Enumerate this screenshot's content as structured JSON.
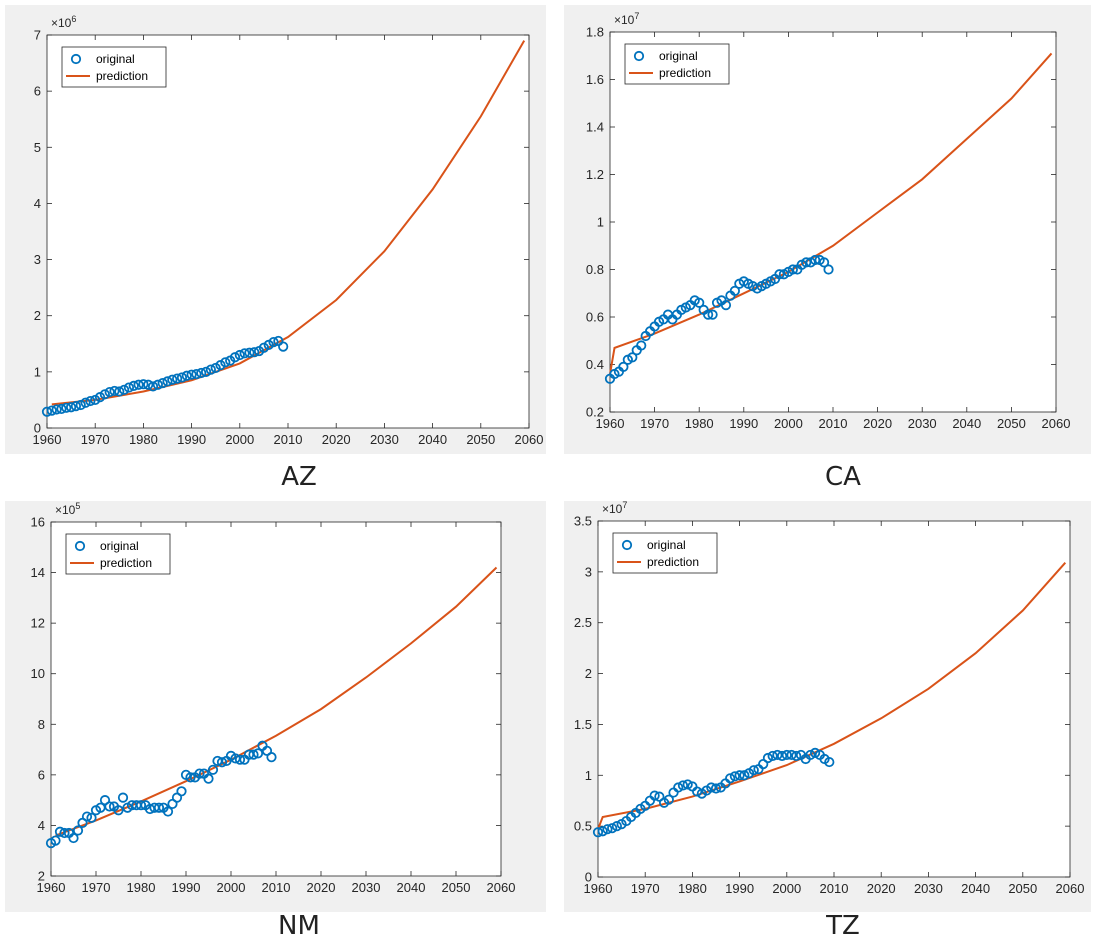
{
  "colors": {
    "original": "#0072bd",
    "prediction": "#d95319"
  },
  "legend": {
    "original": "original",
    "prediction": "prediction"
  },
  "chart_data": [
    {
      "type": "scatter",
      "caption": "AZ",
      "exponent_base": "×10",
      "exponent": "6",
      "xlim": [
        1960,
        2060
      ],
      "ylim": [
        0,
        7
      ],
      "xticks": [
        1960,
        1970,
        1980,
        1990,
        2000,
        2010,
        2020,
        2030,
        2040,
        2050,
        2060
      ],
      "yticks": [
        0,
        1,
        2,
        3,
        4,
        5,
        6,
        7
      ],
      "legend_position": "top-left",
      "series": [
        {
          "name": "original",
          "x": [
            1960,
            1961,
            1962,
            1963,
            1964,
            1965,
            1966,
            1967,
            1968,
            1969,
            1970,
            1971,
            1972,
            1973,
            1974,
            1975,
            1976,
            1977,
            1978,
            1979,
            1980,
            1981,
            1982,
            1983,
            1984,
            1985,
            1986,
            1987,
            1988,
            1989,
            1990,
            1991,
            1992,
            1993,
            1994,
            1995,
            1996,
            1997,
            1998,
            1999,
            2000,
            2001,
            2002,
            2003,
            2004,
            2005,
            2006,
            2007,
            2008,
            2009
          ],
          "y": [
            0.29,
            0.31,
            0.33,
            0.34,
            0.36,
            0.37,
            0.39,
            0.41,
            0.45,
            0.48,
            0.5,
            0.55,
            0.6,
            0.64,
            0.66,
            0.65,
            0.68,
            0.72,
            0.75,
            0.77,
            0.78,
            0.77,
            0.74,
            0.77,
            0.8,
            0.83,
            0.86,
            0.88,
            0.9,
            0.93,
            0.95,
            0.96,
            0.98,
            1.0,
            1.04,
            1.07,
            1.12,
            1.17,
            1.2,
            1.26,
            1.3,
            1.33,
            1.34,
            1.35,
            1.37,
            1.43,
            1.48,
            1.53,
            1.55,
            1.45
          ]
        },
        {
          "name": "prediction",
          "x": [
            1961,
            1970,
            1980,
            1990,
            2000,
            2010,
            2020,
            2030,
            2040,
            2050,
            2059
          ],
          "y": [
            0.42,
            0.5,
            0.65,
            0.85,
            1.15,
            1.62,
            2.28,
            3.15,
            4.25,
            5.55,
            6.9
          ]
        }
      ]
    },
    {
      "type": "scatter",
      "caption": "CA",
      "exponent_base": "×10",
      "exponent": "7",
      "xlim": [
        1960,
        2060
      ],
      "ylim": [
        0.2,
        1.8
      ],
      "xticks": [
        1960,
        1970,
        1980,
        1990,
        2000,
        2010,
        2020,
        2030,
        2040,
        2050,
        2060
      ],
      "yticks": [
        0.2,
        0.4,
        0.6,
        0.8,
        1,
        1.2,
        1.4,
        1.6,
        1.8
      ],
      "legend_position": "top-left",
      "series": [
        {
          "name": "original",
          "x": [
            1960,
            1961,
            1962,
            1963,
            1964,
            1965,
            1966,
            1967,
            1968,
            1969,
            1970,
            1971,
            1972,
            1973,
            1974,
            1975,
            1976,
            1977,
            1978,
            1979,
            1980,
            1981,
            1982,
            1983,
            1984,
            1985,
            1986,
            1987,
            1988,
            1989,
            1990,
            1991,
            1992,
            1993,
            1994,
            1995,
            1996,
            1997,
            1998,
            1999,
            2000,
            2001,
            2002,
            2003,
            2004,
            2005,
            2006,
            2007,
            2008,
            2009
          ],
          "y": [
            0.34,
            0.36,
            0.37,
            0.39,
            0.42,
            0.43,
            0.46,
            0.48,
            0.52,
            0.54,
            0.56,
            0.58,
            0.59,
            0.61,
            0.59,
            0.61,
            0.63,
            0.64,
            0.65,
            0.67,
            0.66,
            0.63,
            0.61,
            0.61,
            0.66,
            0.67,
            0.65,
            0.69,
            0.71,
            0.74,
            0.75,
            0.74,
            0.73,
            0.72,
            0.73,
            0.74,
            0.75,
            0.76,
            0.78,
            0.78,
            0.79,
            0.8,
            0.8,
            0.82,
            0.83,
            0.83,
            0.84,
            0.84,
            0.83,
            0.8
          ]
        },
        {
          "name": "prediction",
          "x": [
            1960,
            1961,
            1970,
            1980,
            1990,
            2000,
            2010,
            2020,
            2030,
            2040,
            2050,
            2059
          ],
          "y": [
            0.36,
            0.47,
            0.53,
            0.61,
            0.7,
            0.79,
            0.9,
            1.04,
            1.18,
            1.35,
            1.52,
            1.71
          ]
        }
      ]
    },
    {
      "type": "scatter",
      "caption": "NM",
      "exponent_base": "×10",
      "exponent": "5",
      "xlim": [
        1960,
        2060
      ],
      "ylim": [
        2,
        16
      ],
      "xticks": [
        1960,
        1970,
        1980,
        1990,
        2000,
        2010,
        2020,
        2030,
        2040,
        2050,
        2060
      ],
      "yticks": [
        2,
        4,
        6,
        8,
        10,
        12,
        14,
        16
      ],
      "legend_position": "top-left",
      "series": [
        {
          "name": "original",
          "x": [
            1960,
            1961,
            1962,
            1963,
            1964,
            1965,
            1966,
            1967,
            1968,
            1969,
            1970,
            1971,
            1972,
            1973,
            1974,
            1975,
            1976,
            1977,
            1978,
            1979,
            1980,
            1981,
            1982,
            1983,
            1984,
            1985,
            1986,
            1987,
            1988,
            1989,
            1990,
            1991,
            1992,
            1993,
            1994,
            1995,
            1996,
            1997,
            1998,
            1999,
            2000,
            2001,
            2002,
            2003,
            2004,
            2005,
            2006,
            2007,
            2008,
            2009
          ],
          "y": [
            3.3,
            3.4,
            3.75,
            3.7,
            3.7,
            3.5,
            3.8,
            4.1,
            4.35,
            4.3,
            4.6,
            4.7,
            5.0,
            4.75,
            4.75,
            4.6,
            5.1,
            4.7,
            4.8,
            4.8,
            4.8,
            4.8,
            4.65,
            4.7,
            4.7,
            4.7,
            4.55,
            4.85,
            5.1,
            5.35,
            6.0,
            5.9,
            5.9,
            6.05,
            6.05,
            5.85,
            6.2,
            6.55,
            6.5,
            6.55,
            6.75,
            6.65,
            6.6,
            6.6,
            6.8,
            6.8,
            6.85,
            7.15,
            6.95,
            6.7
          ]
        },
        {
          "name": "prediction",
          "x": [
            1961,
            1970,
            1980,
            1990,
            2000,
            2010,
            2020,
            2030,
            2040,
            2050,
            2059
          ],
          "y": [
            3.6,
            4.2,
            4.95,
            5.75,
            6.6,
            7.55,
            8.6,
            9.85,
            11.2,
            12.65,
            14.2
          ]
        }
      ]
    },
    {
      "type": "scatter",
      "caption": "TZ",
      "exponent_base": "×10",
      "exponent": "7",
      "xlim": [
        1960,
        2060
      ],
      "ylim": [
        0,
        3.5
      ],
      "xticks": [
        1960,
        1970,
        1980,
        1990,
        2000,
        2010,
        2020,
        2030,
        2040,
        2050,
        2060
      ],
      "yticks": [
        0,
        0.5,
        1,
        1.5,
        2,
        2.5,
        3,
        3.5
      ],
      "legend_position": "top-left",
      "series": [
        {
          "name": "original",
          "x": [
            1960,
            1961,
            1962,
            1963,
            1964,
            1965,
            1966,
            1967,
            1968,
            1969,
            1970,
            1971,
            1972,
            1973,
            1974,
            1975,
            1976,
            1977,
            1978,
            1979,
            1980,
            1981,
            1982,
            1983,
            1984,
            1985,
            1986,
            1987,
            1988,
            1989,
            1990,
            1991,
            1992,
            1993,
            1994,
            1995,
            1996,
            1997,
            1998,
            1999,
            2000,
            2001,
            2002,
            2003,
            2004,
            2005,
            2006,
            2007,
            2008,
            2009
          ],
          "y": [
            0.44,
            0.45,
            0.47,
            0.48,
            0.5,
            0.52,
            0.55,
            0.59,
            0.63,
            0.67,
            0.7,
            0.75,
            0.8,
            0.79,
            0.73,
            0.76,
            0.83,
            0.88,
            0.9,
            0.91,
            0.89,
            0.84,
            0.82,
            0.85,
            0.88,
            0.87,
            0.88,
            0.92,
            0.97,
            0.99,
            1.0,
            1.0,
            1.02,
            1.05,
            1.06,
            1.11,
            1.17,
            1.19,
            1.2,
            1.19,
            1.2,
            1.2,
            1.19,
            1.2,
            1.16,
            1.2,
            1.22,
            1.2,
            1.16,
            1.13
          ]
        },
        {
          "name": "prediction",
          "x": [
            1960,
            1961,
            1970,
            1980,
            1990,
            2000,
            2010,
            2020,
            2030,
            2040,
            2050,
            2059
          ],
          "y": [
            0.47,
            0.59,
            0.67,
            0.79,
            0.94,
            1.1,
            1.31,
            1.56,
            1.85,
            2.2,
            2.62,
            3.09
          ]
        }
      ]
    }
  ]
}
